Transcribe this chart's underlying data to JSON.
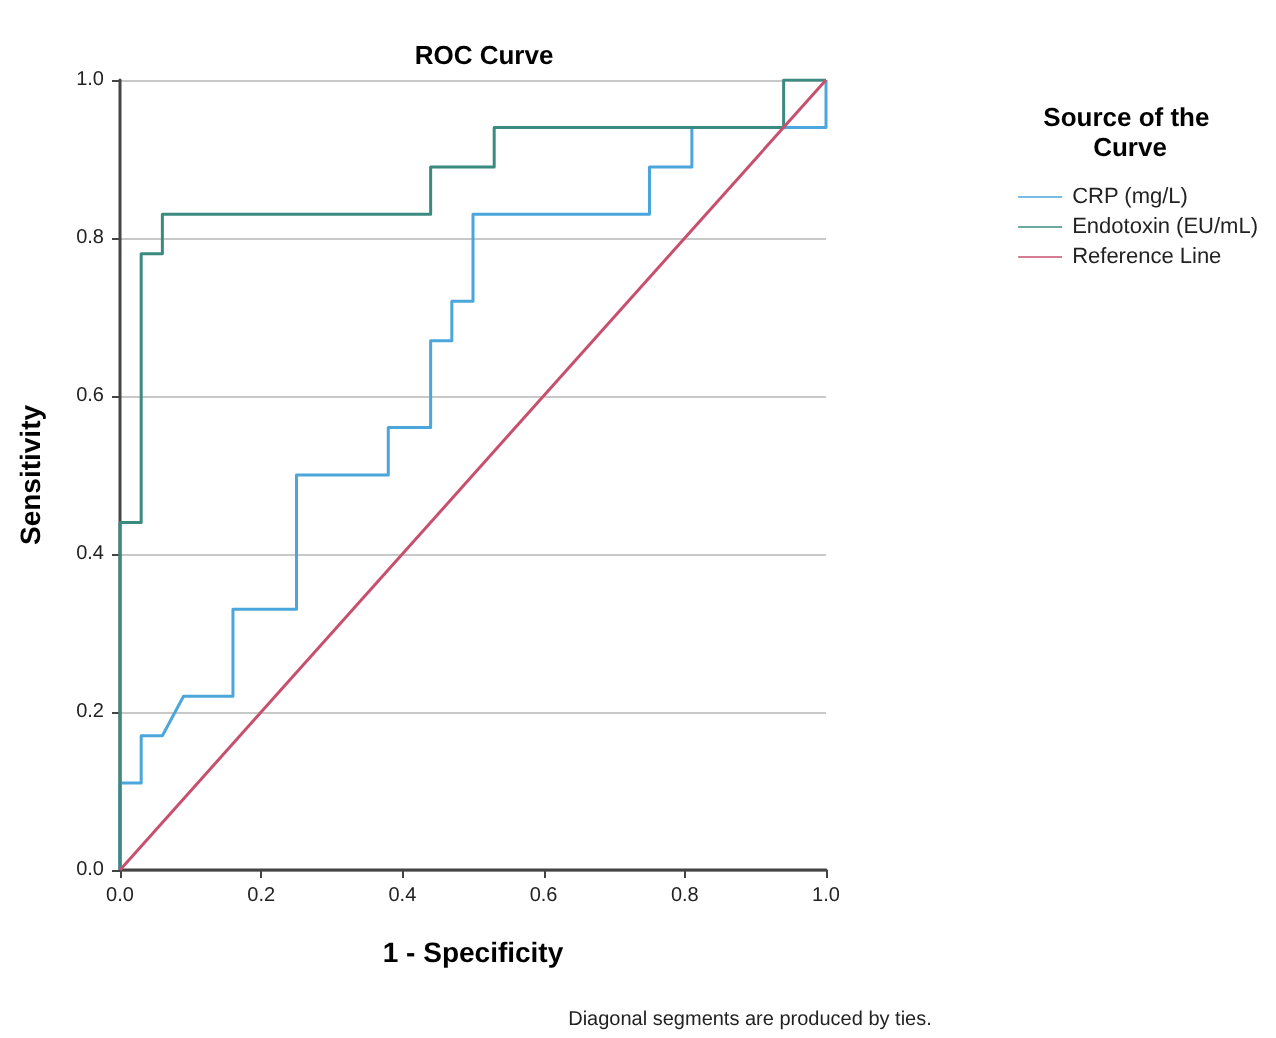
{
  "chart_data": {
    "type": "line",
    "title": "ROC Curve",
    "xlabel": "1 - Specificity",
    "ylabel": "Sensitivity",
    "legend_title": "Source of the Curve",
    "annotations": [
      "Diagonal segments are produced by ties."
    ],
    "series": [
      {
        "name": "CRP (mg/L)",
        "color": "#4ba6dc",
        "x": [
          0,
          0,
          0.03,
          0.03,
          0.06,
          0.09,
          0.16,
          0.16,
          0.25,
          0.25,
          0.38,
          0.38,
          0.44,
          0.44,
          0.47,
          0.47,
          0.5,
          0.5,
          0.75,
          0.75,
          0.81,
          0.81,
          1,
          1
        ],
        "values": [
          0,
          0.11,
          0.11,
          0.17,
          0.17,
          0.22,
          0.22,
          0.33,
          0.33,
          0.5,
          0.5,
          0.56,
          0.56,
          0.67,
          0.67,
          0.72,
          0.72,
          0.83,
          0.83,
          0.89,
          0.89,
          0.94,
          0.94,
          1
        ]
      },
      {
        "name": "Endotoxin (EU/mL)",
        "color": "#3b8a80",
        "x": [
          0,
          0,
          0.03,
          0.03,
          0.06,
          0.06,
          0.44,
          0.44,
          0.53,
          0.53,
          0.94,
          0.94,
          1
        ],
        "values": [
          0,
          0.44,
          0.44,
          0.78,
          0.78,
          0.83,
          0.83,
          0.89,
          0.89,
          0.94,
          0.94,
          1,
          1
        ]
      },
      {
        "name": "Reference Line",
        "color": "#c8506e",
        "x": [
          0,
          1
        ],
        "values": [
          0,
          1
        ]
      }
    ],
    "xlim": [
      0,
      1
    ],
    "ylim": [
      0,
      1
    ],
    "xticks": [
      {
        "value": 0,
        "label": "0.0"
      },
      {
        "value": 0.2,
        "label": "0.2"
      },
      {
        "value": 0.4,
        "label": "0.4"
      },
      {
        "value": 0.6,
        "label": "0.6"
      },
      {
        "value": 0.8,
        "label": "0.8"
      },
      {
        "value": 1,
        "label": "1.0"
      }
    ],
    "yticks": [
      {
        "value": 0,
        "label": "0.0"
      },
      {
        "value": 0.2,
        "label": "0.2"
      },
      {
        "value": 0.4,
        "label": "0.4"
      },
      {
        "value": 0.6,
        "label": "0.6"
      },
      {
        "value": 0.8,
        "label": "0.8"
      },
      {
        "value": 1,
        "label": "1.0"
      }
    ],
    "grid": "y",
    "legend": "right",
    "marker": "none",
    "line_style": "solid"
  }
}
